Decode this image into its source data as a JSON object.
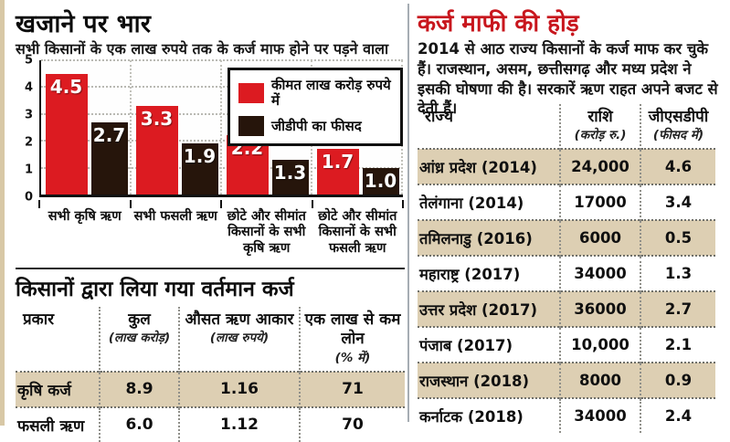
{
  "page": {
    "left_panel": {
      "title": "खजाने पर भार",
      "subtitle": "सभी किसानों के एक लाख रुपये तक के कर्ज माफ होने पर पड़ने वाला"
    },
    "right_panel": {
      "title": "कर्ज माफी की होड़",
      "description": "2014 से आठ राज्य किसानों के कर्ज माफ कर चुके हैं। राजस्थान, असम, छत्तीसगढ़ और मध्य प्रदेश ने इसकी घोषणा की है। सरकारें ऋण राहत अपने बजट से देती हैं।"
    }
  },
  "colors": {
    "series_red": "#dc1b21",
    "series_dark": "#26150b",
    "highlight_beige": "#ddcfb3",
    "title_red": "#c8161d",
    "panel_divider": "#a6adb3",
    "page_edge_tan": "#d8c8a6"
  },
  "chart_data": [
    {
      "type": "bar",
      "title": "खजाने पर भार",
      "subtitle": "सभी किसानों के एक लाख रुपये तक के कर्ज माफ होने पर पड़ने वाला",
      "categories": [
        "सभी कृषि ऋण",
        "सभी फसली ऋण",
        "छोटे और सीमांत किसानों के सभी कृषि ऋण",
        "छोटे और सीमांत किसानों के सभी फसली ऋण"
      ],
      "series": [
        {
          "name": "कीमत लाख करोड़ रुपये में",
          "color": "#dc1b21",
          "values": [
            4.5,
            3.3,
            2.2,
            1.7
          ]
        },
        {
          "name": "जीडीपी का फीसद",
          "color": "#26150b",
          "values": [
            2.7,
            1.9,
            1.3,
            1.0
          ]
        }
      ],
      "ylim": [
        0,
        5
      ],
      "yticks": [
        0,
        1,
        2,
        3,
        4,
        5
      ],
      "grid": true,
      "legend_position": "top-right"
    },
    {
      "type": "table",
      "title": "किसानों द्वारा लिया गया वर्तमान कर्ज",
      "columns": [
        {
          "label": "प्रकार",
          "unit": ""
        },
        {
          "label": "कुल",
          "unit": "(लाख करोड़)"
        },
        {
          "label": "औसत ऋण आकार",
          "unit": "(लाख रुपये)"
        },
        {
          "label": "एक लाख से कम लोन",
          "unit": "(% में)"
        }
      ],
      "rows": [
        {
          "cells": [
            "कृषि कर्ज",
            "8.9",
            "1.16",
            "71"
          ],
          "highlight": true
        },
        {
          "cells": [
            "फसली ऋण",
            "6.0",
            "1.12",
            "70"
          ],
          "highlight": false
        }
      ]
    },
    {
      "type": "table",
      "title": "",
      "columns": [
        {
          "label": "राज्य",
          "unit": ""
        },
        {
          "label": "राशि",
          "unit": "(करोड़ रु.)"
        },
        {
          "label": "जीएसडीपी",
          "unit": "(फीसद में)"
        }
      ],
      "rows": [
        {
          "cells": [
            "आंध्र प्रदेश (2014)",
            "24,000",
            "4.6"
          ],
          "highlight": true
        },
        {
          "cells": [
            "तेलंगाना (2014)",
            "17000",
            "3.4"
          ],
          "highlight": false
        },
        {
          "cells": [
            "तमिलनाडु (2016)",
            "6000",
            "0.5"
          ],
          "highlight": true
        },
        {
          "cells": [
            "महाराष्ट्र (2017)",
            "34000",
            "1.3"
          ],
          "highlight": false
        },
        {
          "cells": [
            "उत्तर प्रदेश (2017)",
            "36000",
            "2.7"
          ],
          "highlight": true
        },
        {
          "cells": [
            "पंजाब (2017)",
            "10,000",
            "2.1"
          ],
          "highlight": false
        },
        {
          "cells": [
            "राजस्थान (2018)",
            "8000",
            "0.9"
          ],
          "highlight": true
        },
        {
          "cells": [
            "कर्नाटक (2018)",
            "34000",
            "2.4"
          ],
          "highlight": false
        }
      ]
    }
  ]
}
